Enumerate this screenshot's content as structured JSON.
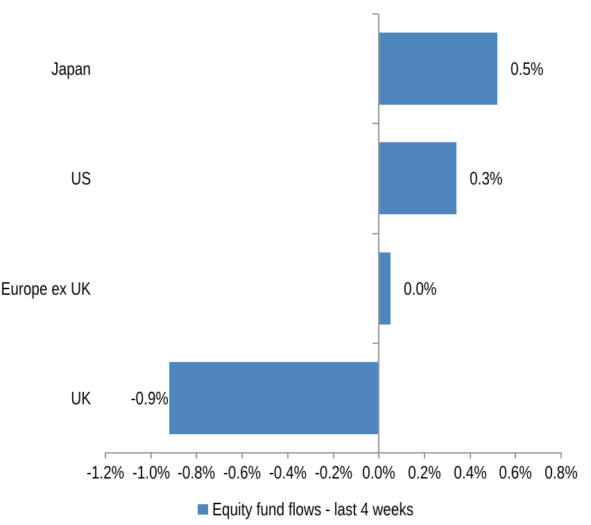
{
  "chart_data": {
    "type": "bar",
    "orientation": "horizontal",
    "title": "",
    "categories": [
      "Japan",
      "US",
      "Europe ex UK",
      "UK"
    ],
    "series": [
      {
        "name": "Equity fund flows - last 4 weeks",
        "values": [
          0.5,
          0.3,
          0.0,
          -0.9
        ],
        "values_unrounded_pct": [
          0.52,
          0.34,
          0.05,
          -0.92
        ],
        "data_labels": [
          "0.5%",
          "0.3%",
          "0.0%",
          "-0.9%"
        ]
      }
    ],
    "x_axis": {
      "unit": "%",
      "min": -1.2,
      "max": 0.8,
      "step": 0.2,
      "tick_labels": [
        "-1.2%",
        "-1.0%",
        "-0.8%",
        "-0.6%",
        "-0.4%",
        "-0.2%",
        "0.0%",
        "0.2%",
        "0.4%",
        "0.6%",
        "0.8%"
      ]
    },
    "y_axis": {
      "tick_labels": [
        "Japan",
        "US",
        "Europe ex UK",
        "UK"
      ]
    },
    "legend": {
      "position": "bottom",
      "items": [
        {
          "label": "Equity fund flows - last 4 weeks",
          "color": "#4D87BE"
        }
      ]
    },
    "grid": false,
    "xlabel": "",
    "ylabel": ""
  },
  "colors": {
    "bar": "#4D87BE",
    "axis": "#969696",
    "text": "#000000",
    "background": "#FFFFFF"
  }
}
